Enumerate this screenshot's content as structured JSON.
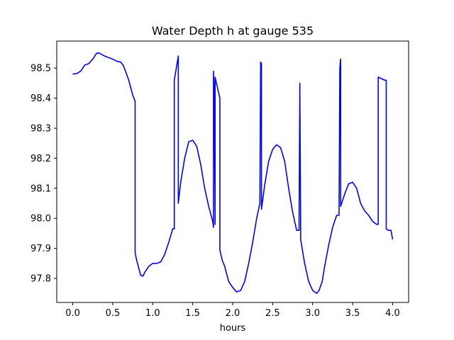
{
  "chart_data": {
    "type": "line",
    "title": "Water Depth h at gauge 535",
    "xlabel": "hours",
    "ylabel": "",
    "xlim": [
      -0.2,
      4.2
    ],
    "ylim": [
      97.72,
      98.59
    ],
    "xticks": [
      0.0,
      0.5,
      1.0,
      1.5,
      2.0,
      2.5,
      3.0,
      3.5,
      4.0
    ],
    "xtick_labels": [
      "0.0",
      "0.5",
      "1.0",
      "1.5",
      "2.0",
      "2.5",
      "3.0",
      "3.5",
      "4.0"
    ],
    "yticks": [
      97.8,
      97.9,
      98.0,
      98.1,
      98.2,
      98.3,
      98.4,
      98.5
    ],
    "ytick_labels": [
      "97.8",
      "97.9",
      "98.0",
      "98.1",
      "98.2",
      "98.3",
      "98.4",
      "98.5"
    ],
    "grid": false,
    "series": [
      {
        "color": "#0000ff",
        "x": [
          0.0,
          0.05,
          0.1,
          0.15,
          0.2,
          0.25,
          0.3,
          0.33,
          0.4,
          0.5,
          0.55,
          0.6,
          0.63,
          0.66,
          0.7,
          0.75,
          0.78,
          0.78,
          0.8,
          0.85,
          0.88,
          0.9,
          0.95,
          1.0,
          1.05,
          1.1,
          1.15,
          1.2,
          1.25,
          1.27,
          1.27,
          1.32,
          1.32,
          1.35,
          1.4,
          1.45,
          1.5,
          1.55,
          1.6,
          1.65,
          1.7,
          1.75,
          1.76,
          1.76,
          1.77,
          1.77,
          1.78,
          1.78,
          1.84,
          1.84,
          1.87,
          1.9,
          1.95,
          2.0,
          2.05,
          2.1,
          2.15,
          2.2,
          2.25,
          2.3,
          2.34,
          2.35,
          2.36,
          2.36,
          2.4,
          2.45,
          2.5,
          2.55,
          2.6,
          2.65,
          2.7,
          2.75,
          2.8,
          2.83,
          2.84,
          2.84,
          2.85,
          2.85,
          2.9,
          2.95,
          3.0,
          3.05,
          3.08,
          3.12,
          3.15,
          3.2,
          3.25,
          3.3,
          3.33,
          3.34,
          3.35,
          3.35,
          3.4,
          3.45,
          3.5,
          3.55,
          3.6,
          3.65,
          3.7,
          3.75,
          3.8,
          3.82,
          3.82,
          3.9,
          3.92,
          3.92,
          3.95,
          3.98,
          4.0
        ],
        "y": [
          98.48,
          98.482,
          98.49,
          98.51,
          98.515,
          98.53,
          98.55,
          98.55,
          98.54,
          98.53,
          98.523,
          98.52,
          98.51,
          98.49,
          98.46,
          98.41,
          98.39,
          97.885,
          97.86,
          97.81,
          97.808,
          97.82,
          97.84,
          97.85,
          97.85,
          97.855,
          97.88,
          97.92,
          97.965,
          97.965,
          98.46,
          98.54,
          98.05,
          98.12,
          98.2,
          98.255,
          98.26,
          98.24,
          98.18,
          98.1,
          98.04,
          97.99,
          97.97,
          98.49,
          98.4,
          98.45,
          97.98,
          98.47,
          98.4,
          97.895,
          97.86,
          97.84,
          97.79,
          97.77,
          97.755,
          97.76,
          97.79,
          97.85,
          97.92,
          98.0,
          98.05,
          98.52,
          98.515,
          98.03,
          98.11,
          98.19,
          98.23,
          98.245,
          98.235,
          98.19,
          98.1,
          98.02,
          97.96,
          97.96,
          98.45,
          98.43,
          97.99,
          97.93,
          97.85,
          97.79,
          97.76,
          97.75,
          97.76,
          97.79,
          97.84,
          97.91,
          97.97,
          98.01,
          98.01,
          98.5,
          98.53,
          98.04,
          98.08,
          98.115,
          98.12,
          98.1,
          98.05,
          98.025,
          98.01,
          97.99,
          97.98,
          97.98,
          98.47,
          98.46,
          98.46,
          97.965,
          97.96,
          97.96,
          97.93
        ]
      }
    ]
  }
}
